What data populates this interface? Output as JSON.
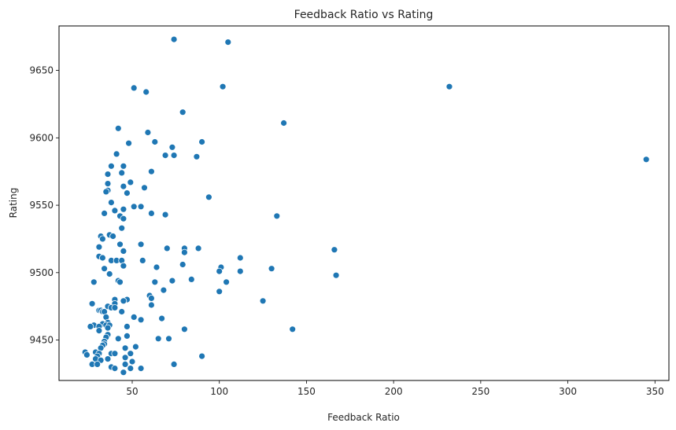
{
  "chart_data": {
    "type": "scatter",
    "title": "Feedback Ratio vs Rating",
    "xlabel": "Feedback Ratio",
    "ylabel": "Rating",
    "xlim": [
      8,
      358
    ],
    "ylim": [
      9420,
      9683
    ],
    "x_ticks": [
      50,
      100,
      150,
      200,
      250,
      300,
      350
    ],
    "y_ticks": [
      9450,
      9500,
      9550,
      9600,
      9650
    ],
    "grid": false,
    "legend": "none",
    "colors": {
      "marker": "#1f77b4",
      "marker_edge": "#ffffff"
    },
    "points": [
      {
        "x": 74,
        "y": 9673
      },
      {
        "x": 105,
        "y": 9671
      },
      {
        "x": 51,
        "y": 9637
      },
      {
        "x": 58,
        "y": 9634
      },
      {
        "x": 102,
        "y": 9638
      },
      {
        "x": 232,
        "y": 9638
      },
      {
        "x": 79,
        "y": 9619
      },
      {
        "x": 137,
        "y": 9611
      },
      {
        "x": 42,
        "y": 9607
      },
      {
        "x": 59,
        "y": 9604
      },
      {
        "x": 48,
        "y": 9596
      },
      {
        "x": 63,
        "y": 9597
      },
      {
        "x": 90,
        "y": 9597
      },
      {
        "x": 73,
        "y": 9593
      },
      {
        "x": 41,
        "y": 9588
      },
      {
        "x": 69,
        "y": 9587
      },
      {
        "x": 74,
        "y": 9587
      },
      {
        "x": 87,
        "y": 9586
      },
      {
        "x": 345,
        "y": 9584
      },
      {
        "x": 38,
        "y": 9579
      },
      {
        "x": 45,
        "y": 9579
      },
      {
        "x": 36,
        "y": 9573
      },
      {
        "x": 44,
        "y": 9574
      },
      {
        "x": 61,
        "y": 9575
      },
      {
        "x": 49,
        "y": 9567
      },
      {
        "x": 36,
        "y": 9566
      },
      {
        "x": 45,
        "y": 9564
      },
      {
        "x": 57,
        "y": 9563
      },
      {
        "x": 36,
        "y": 9561
      },
      {
        "x": 35,
        "y": 9560
      },
      {
        "x": 47,
        "y": 9559
      },
      {
        "x": 94,
        "y": 9556
      },
      {
        "x": 38,
        "y": 9552
      },
      {
        "x": 51,
        "y": 9549
      },
      {
        "x": 55,
        "y": 9549
      },
      {
        "x": 34,
        "y": 9544
      },
      {
        "x": 40,
        "y": 9546
      },
      {
        "x": 45,
        "y": 9547
      },
      {
        "x": 61,
        "y": 9544
      },
      {
        "x": 69,
        "y": 9543
      },
      {
        "x": 133,
        "y": 9542
      },
      {
        "x": 43,
        "y": 9542
      },
      {
        "x": 45,
        "y": 9540
      },
      {
        "x": 44,
        "y": 9533
      },
      {
        "x": 37,
        "y": 9528
      },
      {
        "x": 39,
        "y": 9527
      },
      {
        "x": 32,
        "y": 9527
      },
      {
        "x": 33,
        "y": 9525
      },
      {
        "x": 43,
        "y": 9521
      },
      {
        "x": 55,
        "y": 9521
      },
      {
        "x": 31,
        "y": 9519
      },
      {
        "x": 70,
        "y": 9518
      },
      {
        "x": 80,
        "y": 9518
      },
      {
        "x": 88,
        "y": 9518
      },
      {
        "x": 166,
        "y": 9517
      },
      {
        "x": 80,
        "y": 9515
      },
      {
        "x": 45,
        "y": 9516
      },
      {
        "x": 31,
        "y": 9512
      },
      {
        "x": 33,
        "y": 9511
      },
      {
        "x": 112,
        "y": 9511
      },
      {
        "x": 38,
        "y": 9509
      },
      {
        "x": 41,
        "y": 9509
      },
      {
        "x": 44,
        "y": 9509
      },
      {
        "x": 56,
        "y": 9509
      },
      {
        "x": 79,
        "y": 9506
      },
      {
        "x": 45,
        "y": 9505
      },
      {
        "x": 64,
        "y": 9504
      },
      {
        "x": 101,
        "y": 9504
      },
      {
        "x": 34,
        "y": 9503
      },
      {
        "x": 130,
        "y": 9503
      },
      {
        "x": 100,
        "y": 9501
      },
      {
        "x": 112,
        "y": 9501
      },
      {
        "x": 37,
        "y": 9499
      },
      {
        "x": 167,
        "y": 9498
      },
      {
        "x": 84,
        "y": 9495
      },
      {
        "x": 42,
        "y": 9494
      },
      {
        "x": 43,
        "y": 9493
      },
      {
        "x": 73,
        "y": 9494
      },
      {
        "x": 28,
        "y": 9493
      },
      {
        "x": 63,
        "y": 9493
      },
      {
        "x": 104,
        "y": 9493
      },
      {
        "x": 68,
        "y": 9487
      },
      {
        "x": 100,
        "y": 9486
      },
      {
        "x": 60,
        "y": 9483
      },
      {
        "x": 61,
        "y": 9481
      },
      {
        "x": 40,
        "y": 9480
      },
      {
        "x": 47,
        "y": 9480
      },
      {
        "x": 45,
        "y": 9479
      },
      {
        "x": 125,
        "y": 9479
      },
      {
        "x": 27,
        "y": 9477
      },
      {
        "x": 40,
        "y": 9477
      },
      {
        "x": 61,
        "y": 9476
      },
      {
        "x": 36,
        "y": 9475
      },
      {
        "x": 38,
        "y": 9474
      },
      {
        "x": 40,
        "y": 9474
      },
      {
        "x": 31,
        "y": 9472
      },
      {
        "x": 32,
        "y": 9472
      },
      {
        "x": 33,
        "y": 9471
      },
      {
        "x": 44,
        "y": 9471
      },
      {
        "x": 34,
        "y": 9471
      },
      {
        "x": 35,
        "y": 9467
      },
      {
        "x": 51,
        "y": 9467
      },
      {
        "x": 67,
        "y": 9466
      },
      {
        "x": 55,
        "y": 9465
      },
      {
        "x": 36,
        "y": 9463
      },
      {
        "x": 28,
        "y": 9461
      },
      {
        "x": 33,
        "y": 9462
      },
      {
        "x": 31,
        "y": 9460
      },
      {
        "x": 35,
        "y": 9461
      },
      {
        "x": 37,
        "y": 9461
      },
      {
        "x": 26,
        "y": 9460
      },
      {
        "x": 47,
        "y": 9460
      },
      {
        "x": 36,
        "y": 9459
      },
      {
        "x": 80,
        "y": 9458
      },
      {
        "x": 142,
        "y": 9458
      },
      {
        "x": 31,
        "y": 9457
      },
      {
        "x": 36,
        "y": 9454
      },
      {
        "x": 47,
        "y": 9453
      },
      {
        "x": 35,
        "y": 9452
      },
      {
        "x": 42,
        "y": 9451
      },
      {
        "x": 65,
        "y": 9451
      },
      {
        "x": 71,
        "y": 9451
      },
      {
        "x": 34,
        "y": 9449
      },
      {
        "x": 34,
        "y": 9447
      },
      {
        "x": 33,
        "y": 9446
      },
      {
        "x": 52,
        "y": 9445
      },
      {
        "x": 32,
        "y": 9444
      },
      {
        "x": 46,
        "y": 9444
      },
      {
        "x": 23,
        "y": 9441
      },
      {
        "x": 29,
        "y": 9441
      },
      {
        "x": 31,
        "y": 9440
      },
      {
        "x": 38,
        "y": 9440
      },
      {
        "x": 40,
        "y": 9440
      },
      {
        "x": 49,
        "y": 9440
      },
      {
        "x": 24,
        "y": 9439
      },
      {
        "x": 30,
        "y": 9438
      },
      {
        "x": 90,
        "y": 9438
      },
      {
        "x": 46,
        "y": 9437
      },
      {
        "x": 29,
        "y": 9436
      },
      {
        "x": 36,
        "y": 9436
      },
      {
        "x": 32,
        "y": 9435
      },
      {
        "x": 50,
        "y": 9434
      },
      {
        "x": 27,
        "y": 9432
      },
      {
        "x": 30,
        "y": 9432
      },
      {
        "x": 46,
        "y": 9432
      },
      {
        "x": 74,
        "y": 9432
      },
      {
        "x": 38,
        "y": 9430
      },
      {
        "x": 40,
        "y": 9429
      },
      {
        "x": 55,
        "y": 9429
      },
      {
        "x": 45,
        "y": 9426
      },
      {
        "x": 49,
        "y": 9429
      }
    ]
  }
}
